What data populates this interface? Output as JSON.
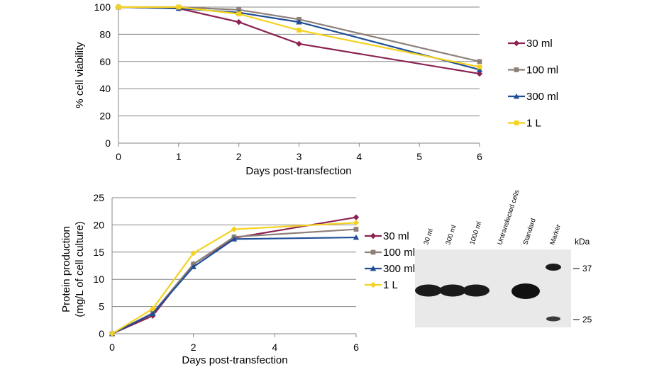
{
  "chart_data": [
    {
      "type": "line",
      "title": "",
      "xlabel": "Days post-transfection",
      "ylabel": "% cell viability",
      "xlim": [
        0,
        6
      ],
      "ylim": [
        0,
        100
      ],
      "xticks": [
        "0",
        "1",
        "2",
        "3",
        "4",
        "5",
        "6"
      ],
      "yticks": [
        "0",
        "20",
        "40",
        "60",
        "80",
        "100"
      ],
      "grid": true,
      "legend_position": "right",
      "series": [
        {
          "name": "30 ml",
          "color": "#8B2252",
          "marker": "diamond",
          "x": [
            0,
            1,
            2,
            3,
            6
          ],
          "y": [
            100,
            99,
            89,
            73,
            51
          ]
        },
        {
          "name": "100 ml",
          "color": "#8C8079",
          "marker": "square",
          "x": [
            0,
            1,
            2,
            3,
            6
          ],
          "y": [
            100,
            100,
            98,
            91,
            60
          ]
        },
        {
          "name": "300 ml",
          "color": "#1F4E96",
          "marker": "triangle",
          "x": [
            0,
            1,
            2,
            3,
            6
          ],
          "y": [
            100,
            99,
            96,
            89,
            54
          ]
        },
        {
          "name": "1 L",
          "color": "#F5D21F",
          "marker": "square",
          "x": [
            0,
            1,
            2,
            3,
            6
          ],
          "y": [
            100,
            100,
            95,
            83,
            56
          ]
        }
      ]
    },
    {
      "type": "line",
      "title": "",
      "xlabel": "Days post-transfection",
      "ylabel": "Protein production (mg/L of cell culture)",
      "ylabel_lines": [
        "Protein production",
        "(mg/L of cell culture)"
      ],
      "xlim": [
        0,
        6
      ],
      "ylim": [
        0,
        25
      ],
      "xticks": [
        "0",
        "2",
        "4",
        "6"
      ],
      "yticks": [
        "0",
        "5",
        "10",
        "15",
        "20",
        "25"
      ],
      "grid": true,
      "legend_position": "right",
      "series": [
        {
          "name": "30 ml",
          "color": "#8B2252",
          "marker": "diamond",
          "x": [
            0,
            1,
            2,
            3,
            6
          ],
          "y": [
            0,
            3.3,
            12.8,
            17.6,
            21.4
          ]
        },
        {
          "name": "100 ml",
          "color": "#8C8079",
          "marker": "square",
          "x": [
            0,
            1,
            2,
            3,
            6
          ],
          "y": [
            0,
            3.8,
            12.8,
            17.8,
            19.2
          ]
        },
        {
          "name": "300 ml",
          "color": "#1F4E96",
          "marker": "triangle",
          "x": [
            0,
            1,
            2,
            3,
            6
          ],
          "y": [
            0,
            3.7,
            12.3,
            17.4,
            17.7
          ]
        },
        {
          "name": "1 L",
          "color": "#F5D21F",
          "marker": "diamond",
          "x": [
            0,
            1,
            2,
            3,
            6
          ],
          "y": [
            0,
            4.6,
            14.8,
            19.2,
            20.4
          ]
        }
      ]
    }
  ],
  "blot": {
    "lanes": [
      "30 ml",
      "300 ml",
      "1000 ml",
      "Untransfected cells",
      "Standard",
      "Marker"
    ],
    "unit_label": "kDa",
    "markers": [
      "37",
      "25"
    ]
  }
}
